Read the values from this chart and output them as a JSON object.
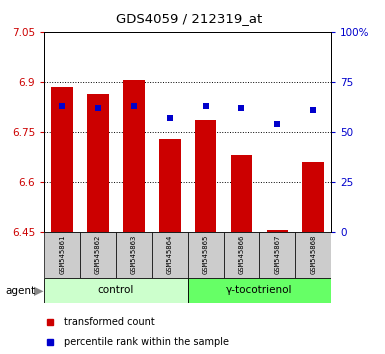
{
  "title": "GDS4059 / 212319_at",
  "samples": [
    "GSM545861",
    "GSM545862",
    "GSM545863",
    "GSM545864",
    "GSM545865",
    "GSM545866",
    "GSM545867",
    "GSM545868"
  ],
  "red_values": [
    6.885,
    6.865,
    6.905,
    6.73,
    6.785,
    6.68,
    6.455,
    6.66
  ],
  "blue_values": [
    63,
    62,
    63,
    57,
    63,
    62,
    54,
    61
  ],
  "ylim_left": [
    6.45,
    7.05
  ],
  "ylim_right": [
    0,
    100
  ],
  "yticks_left": [
    6.45,
    6.6,
    6.75,
    6.9,
    7.05
  ],
  "yticks_right": [
    0,
    25,
    50,
    75,
    100
  ],
  "ytick_labels_left": [
    "6.45",
    "6.6",
    "6.75",
    "6.9",
    "7.05"
  ],
  "ytick_labels_right": [
    "0",
    "25",
    "50",
    "75",
    "100%"
  ],
  "groups": [
    {
      "label": "control",
      "indices": [
        0,
        1,
        2,
        3
      ],
      "color": "#ccffcc"
    },
    {
      "label": "γ-tocotrienol",
      "indices": [
        4,
        5,
        6,
        7
      ],
      "color": "#66ff66"
    }
  ],
  "bar_color": "#cc0000",
  "dot_color": "#0000cc",
  "bar_width": 0.6,
  "grid_color": "#000000",
  "bg_color": "#ffffff",
  "plot_bg": "#ffffff",
  "agent_label": "agent",
  "legend_red": "transformed count",
  "legend_blue": "percentile rank within the sample",
  "left_axis_color": "#cc0000",
  "right_axis_color": "#0000cc",
  "sample_box_color": "#cccccc"
}
